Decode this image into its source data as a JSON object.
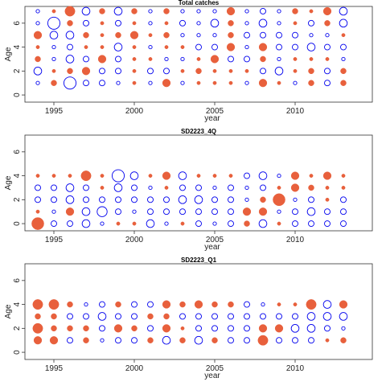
{
  "chart_data": [
    {
      "type": "scatter",
      "title": "Total catches",
      "xlabel": "year",
      "ylabel": "Age",
      "xlim": [
        1993.2,
        2014.8
      ],
      "ylim": [
        -0.6,
        7.4
      ],
      "xticks": [
        1995,
        2000,
        2005,
        2010
      ],
      "yticks": [
        0,
        2,
        4,
        6
      ],
      "grid": false,
      "colors": {
        "positive": "#E8603C",
        "negative": "#0000EE"
      },
      "years": [
        1994,
        1995,
        1996,
        1997,
        1998,
        1999,
        2000,
        2001,
        2002,
        2003,
        2004,
        2005,
        2006,
        2007,
        2008,
        2009,
        2010,
        2011,
        2012,
        2013
      ],
      "ages": [
        1,
        2,
        3,
        4,
        5,
        6,
        7
      ],
      "values": {
        "7": [
          -1,
          1,
          4,
          -3,
          2,
          -3,
          2,
          -1,
          2,
          -1,
          -1,
          -1,
          3,
          -1,
          -2,
          -1,
          2,
          1,
          3,
          -3
        ],
        "6": [
          -1,
          -5,
          2,
          -2,
          1,
          -2,
          1,
          -1,
          1,
          -2,
          -1,
          -3,
          2,
          -1,
          -3,
          -1,
          1,
          -2,
          2,
          -3
        ],
        "5": [
          3,
          -3,
          -3,
          2,
          1,
          2,
          3,
          1,
          2,
          -1,
          -1,
          -1,
          2,
          -2,
          -2,
          -2,
          -2,
          -1,
          -1,
          1
        ],
        "4": [
          1,
          -1,
          -2,
          1,
          1,
          -3,
          1,
          -1,
          1,
          1,
          -2,
          -2,
          3,
          -1,
          3,
          -2,
          -2,
          -3,
          -2,
          -2
        ],
        "3": [
          2,
          -1,
          -3,
          -2,
          3,
          -2,
          1,
          1,
          -1,
          -1,
          1,
          3,
          -2,
          -2,
          2,
          -1,
          1,
          1,
          1,
          -1
        ],
        "2": [
          -3,
          1,
          2,
          3,
          -2,
          -2,
          1,
          -2,
          -2,
          1,
          2,
          1,
          1,
          1,
          -2,
          -3,
          1,
          2,
          -2,
          2
        ],
        "1": [
          -1,
          2,
          -5,
          -2,
          -2,
          -1,
          1,
          -1,
          3,
          -1,
          1,
          1,
          1,
          -1,
          3,
          1,
          -1,
          2,
          -2,
          2
        ]
      }
    },
    {
      "type": "scatter",
      "title": "SD2223_4Q",
      "xlabel": "year",
      "ylabel": "Age",
      "xlim": [
        1993.2,
        2014.8
      ],
      "ylim": [
        -0.6,
        7.4
      ],
      "xticks": [
        1995,
        2000,
        2005,
        2010
      ],
      "yticks": [
        0,
        2,
        4,
        6
      ],
      "grid": false,
      "colors": {
        "positive": "#E8603C",
        "negative": "#0000EE"
      },
      "years": [
        1994,
        1995,
        1996,
        1997,
        1998,
        1999,
        2000,
        2001,
        2002,
        2003,
        2004,
        2005,
        2006,
        2007,
        2008,
        2009,
        2010,
        2011,
        2012,
        2013
      ],
      "ages": [
        0,
        1,
        2,
        3,
        4
      ],
      "values": {
        "4": [
          1,
          1,
          1,
          4,
          1,
          -5,
          -3,
          1,
          3,
          -3,
          1,
          1,
          1,
          -2,
          -3,
          -1,
          3,
          1,
          3,
          1
        ],
        "3": [
          -2,
          -2,
          -3,
          -2,
          1,
          -3,
          -2,
          -1,
          1,
          -2,
          -2,
          -1,
          -2,
          -1,
          -2,
          1,
          3,
          2,
          1,
          1
        ],
        "2": [
          -2,
          -2,
          -3,
          -2,
          -2,
          -2,
          -2,
          -2,
          -2,
          -3,
          -3,
          -2,
          -2,
          -1,
          2,
          5,
          -1,
          -2,
          1,
          -2
        ],
        "1": [
          1,
          -1,
          3,
          -3,
          -4,
          -2,
          -1,
          -2,
          -2,
          -2,
          -2,
          -2,
          -2,
          3,
          3,
          -1,
          -2,
          -3,
          -2,
          -2
        ],
        "0": [
          5,
          -2,
          -2,
          -3,
          -1,
          1,
          1,
          -3,
          -1,
          1,
          -2,
          -1,
          -2,
          2,
          -3,
          1,
          -2,
          -2,
          -2,
          -2
        ]
      }
    },
    {
      "type": "scatter",
      "title": "SD2223_Q1",
      "xlabel": "year",
      "ylabel": "Age",
      "xlim": [
        1993.2,
        2014.8
      ],
      "ylim": [
        -0.6,
        7.4
      ],
      "xticks": [
        1995,
        2000,
        2005,
        2010
      ],
      "yticks": [
        0,
        2,
        4,
        6
      ],
      "grid": false,
      "colors": {
        "positive": "#E8603C",
        "negative": "#0000EE"
      },
      "years": [
        1994,
        1995,
        1996,
        1997,
        1998,
        1999,
        2000,
        2001,
        2002,
        2003,
        2004,
        2005,
        2006,
        2007,
        2008,
        2009,
        2010,
        2011,
        2012,
        2013
      ],
      "ages": [
        1,
        2,
        3,
        4
      ],
      "values": {
        "4": [
          4,
          4,
          2,
          -1,
          -2,
          2,
          -2,
          -2,
          3,
          2,
          3,
          2,
          2,
          -2,
          -1,
          1,
          1,
          4,
          -3,
          3
        ],
        "3": [
          2,
          2,
          -2,
          -2,
          -3,
          -2,
          -2,
          2,
          2,
          -2,
          -2,
          -2,
          -2,
          -2,
          -2,
          -2,
          -2,
          -3,
          -3,
          -3
        ],
        "2": [
          4,
          2,
          2,
          2,
          -2,
          3,
          2,
          -2,
          3,
          1,
          -2,
          -2,
          -2,
          -2,
          3,
          3,
          -3,
          -3,
          -2,
          -1
        ],
        "1": [
          3,
          3,
          -2,
          2,
          -1,
          -2,
          -2,
          2,
          -3,
          2,
          -3,
          2,
          -2,
          -2,
          4,
          -2,
          -2,
          -2,
          1,
          2
        ]
      }
    }
  ]
}
